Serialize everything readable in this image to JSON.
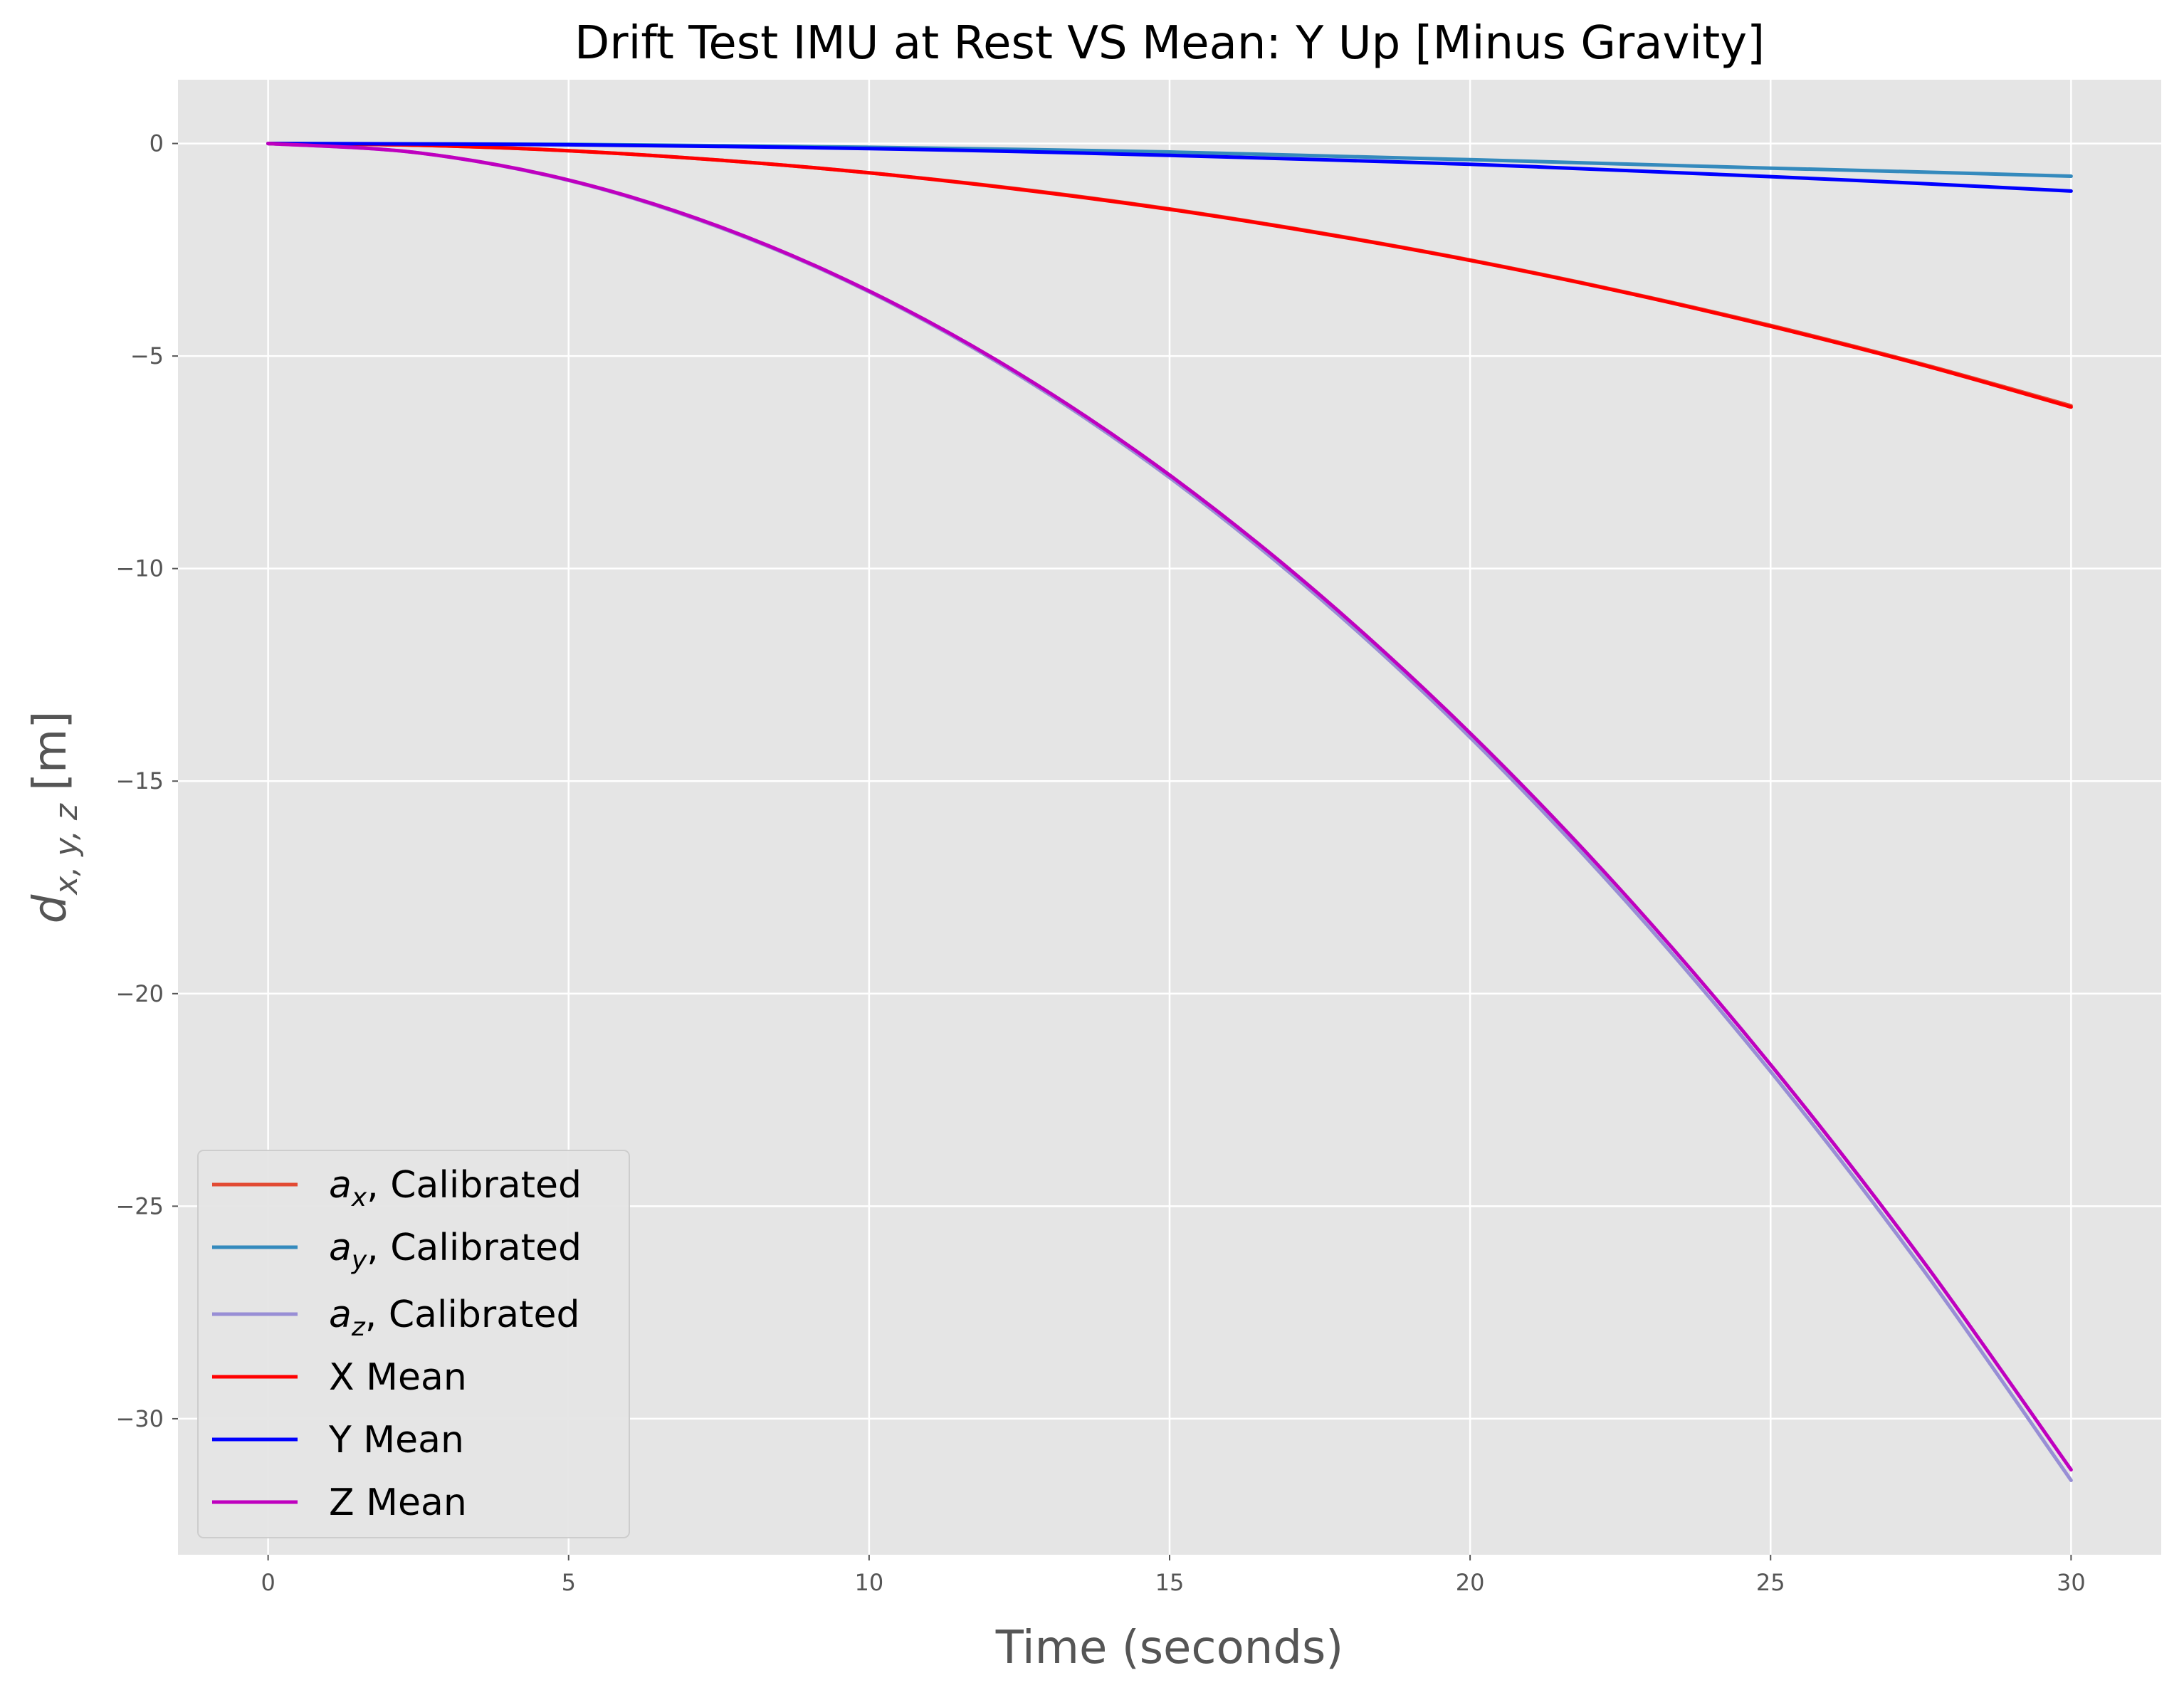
{
  "chart_data": {
    "type": "line",
    "title": "Drift Test IMU at Rest VS Mean: Y Up [Minus Gravity]",
    "xlabel": "Time (seconds)",
    "ylabel": {
      "base": "d",
      "sub": "x, y, z",
      "unit": "[m]"
    },
    "xlim": [
      -1.5,
      31.5
    ],
    "ylim": [
      -33.2,
      1.5
    ],
    "xticks": [
      0,
      5,
      10,
      15,
      20,
      25,
      30
    ],
    "yticks": [
      0,
      -5,
      -10,
      -15,
      -20,
      -25,
      -30
    ],
    "grid": true,
    "legend_position": "lower-left",
    "colors": {
      "plot_bg": "#e5e5e5",
      "grid": "#ffffff",
      "tick": "#555555"
    },
    "x": [
      0,
      2.5,
      5,
      7.5,
      10,
      12.5,
      15,
      17.5,
      20,
      22.5,
      25,
      27.5,
      30
    ],
    "series": [
      {
        "name_base": "a",
        "name_sub": "x",
        "name_rest": ", Calibrated",
        "color": "#E24A33",
        "values": [
          0,
          -0.04,
          -0.17,
          -0.39,
          -0.69,
          -1.07,
          -1.54,
          -2.1,
          -2.74,
          -3.47,
          -4.28,
          -5.18,
          -6.17
        ]
      },
      {
        "name_base": "a",
        "name_sub": "y",
        "name_rest": ", Calibrated",
        "color": "#348ABD",
        "values": [
          0,
          -0.01,
          -0.02,
          -0.05,
          -0.09,
          -0.14,
          -0.2,
          -0.29,
          -0.38,
          -0.48,
          -0.58,
          -0.67,
          -0.77
        ]
      },
      {
        "name_base": "a",
        "name_sub": "z",
        "name_rest": ", Calibrated",
        "color": "#988ED5",
        "values": [
          0,
          -0.22,
          -0.87,
          -1.97,
          -3.49,
          -5.46,
          -7.86,
          -10.7,
          -13.97,
          -17.68,
          -21.83,
          -26.42,
          -31.45
        ]
      },
      {
        "name": "X Mean",
        "color": "#ff0000",
        "values": [
          0,
          -0.04,
          -0.17,
          -0.39,
          -0.69,
          -1.08,
          -1.55,
          -2.11,
          -2.75,
          -3.48,
          -4.3,
          -5.2,
          -6.2
        ]
      },
      {
        "name": "Y Mean",
        "color": "#0000ff",
        "values": [
          0,
          -0.01,
          -0.03,
          -0.07,
          -0.12,
          -0.19,
          -0.28,
          -0.38,
          -0.49,
          -0.63,
          -0.78,
          -0.94,
          -1.12
        ]
      },
      {
        "name": "Z Mean",
        "color": "#bf00bf",
        "values": [
          0,
          -0.22,
          -0.86,
          -1.95,
          -3.47,
          -5.42,
          -7.8,
          -10.62,
          -13.87,
          -17.55,
          -21.67,
          -26.22,
          -31.2
        ]
      }
    ]
  }
}
